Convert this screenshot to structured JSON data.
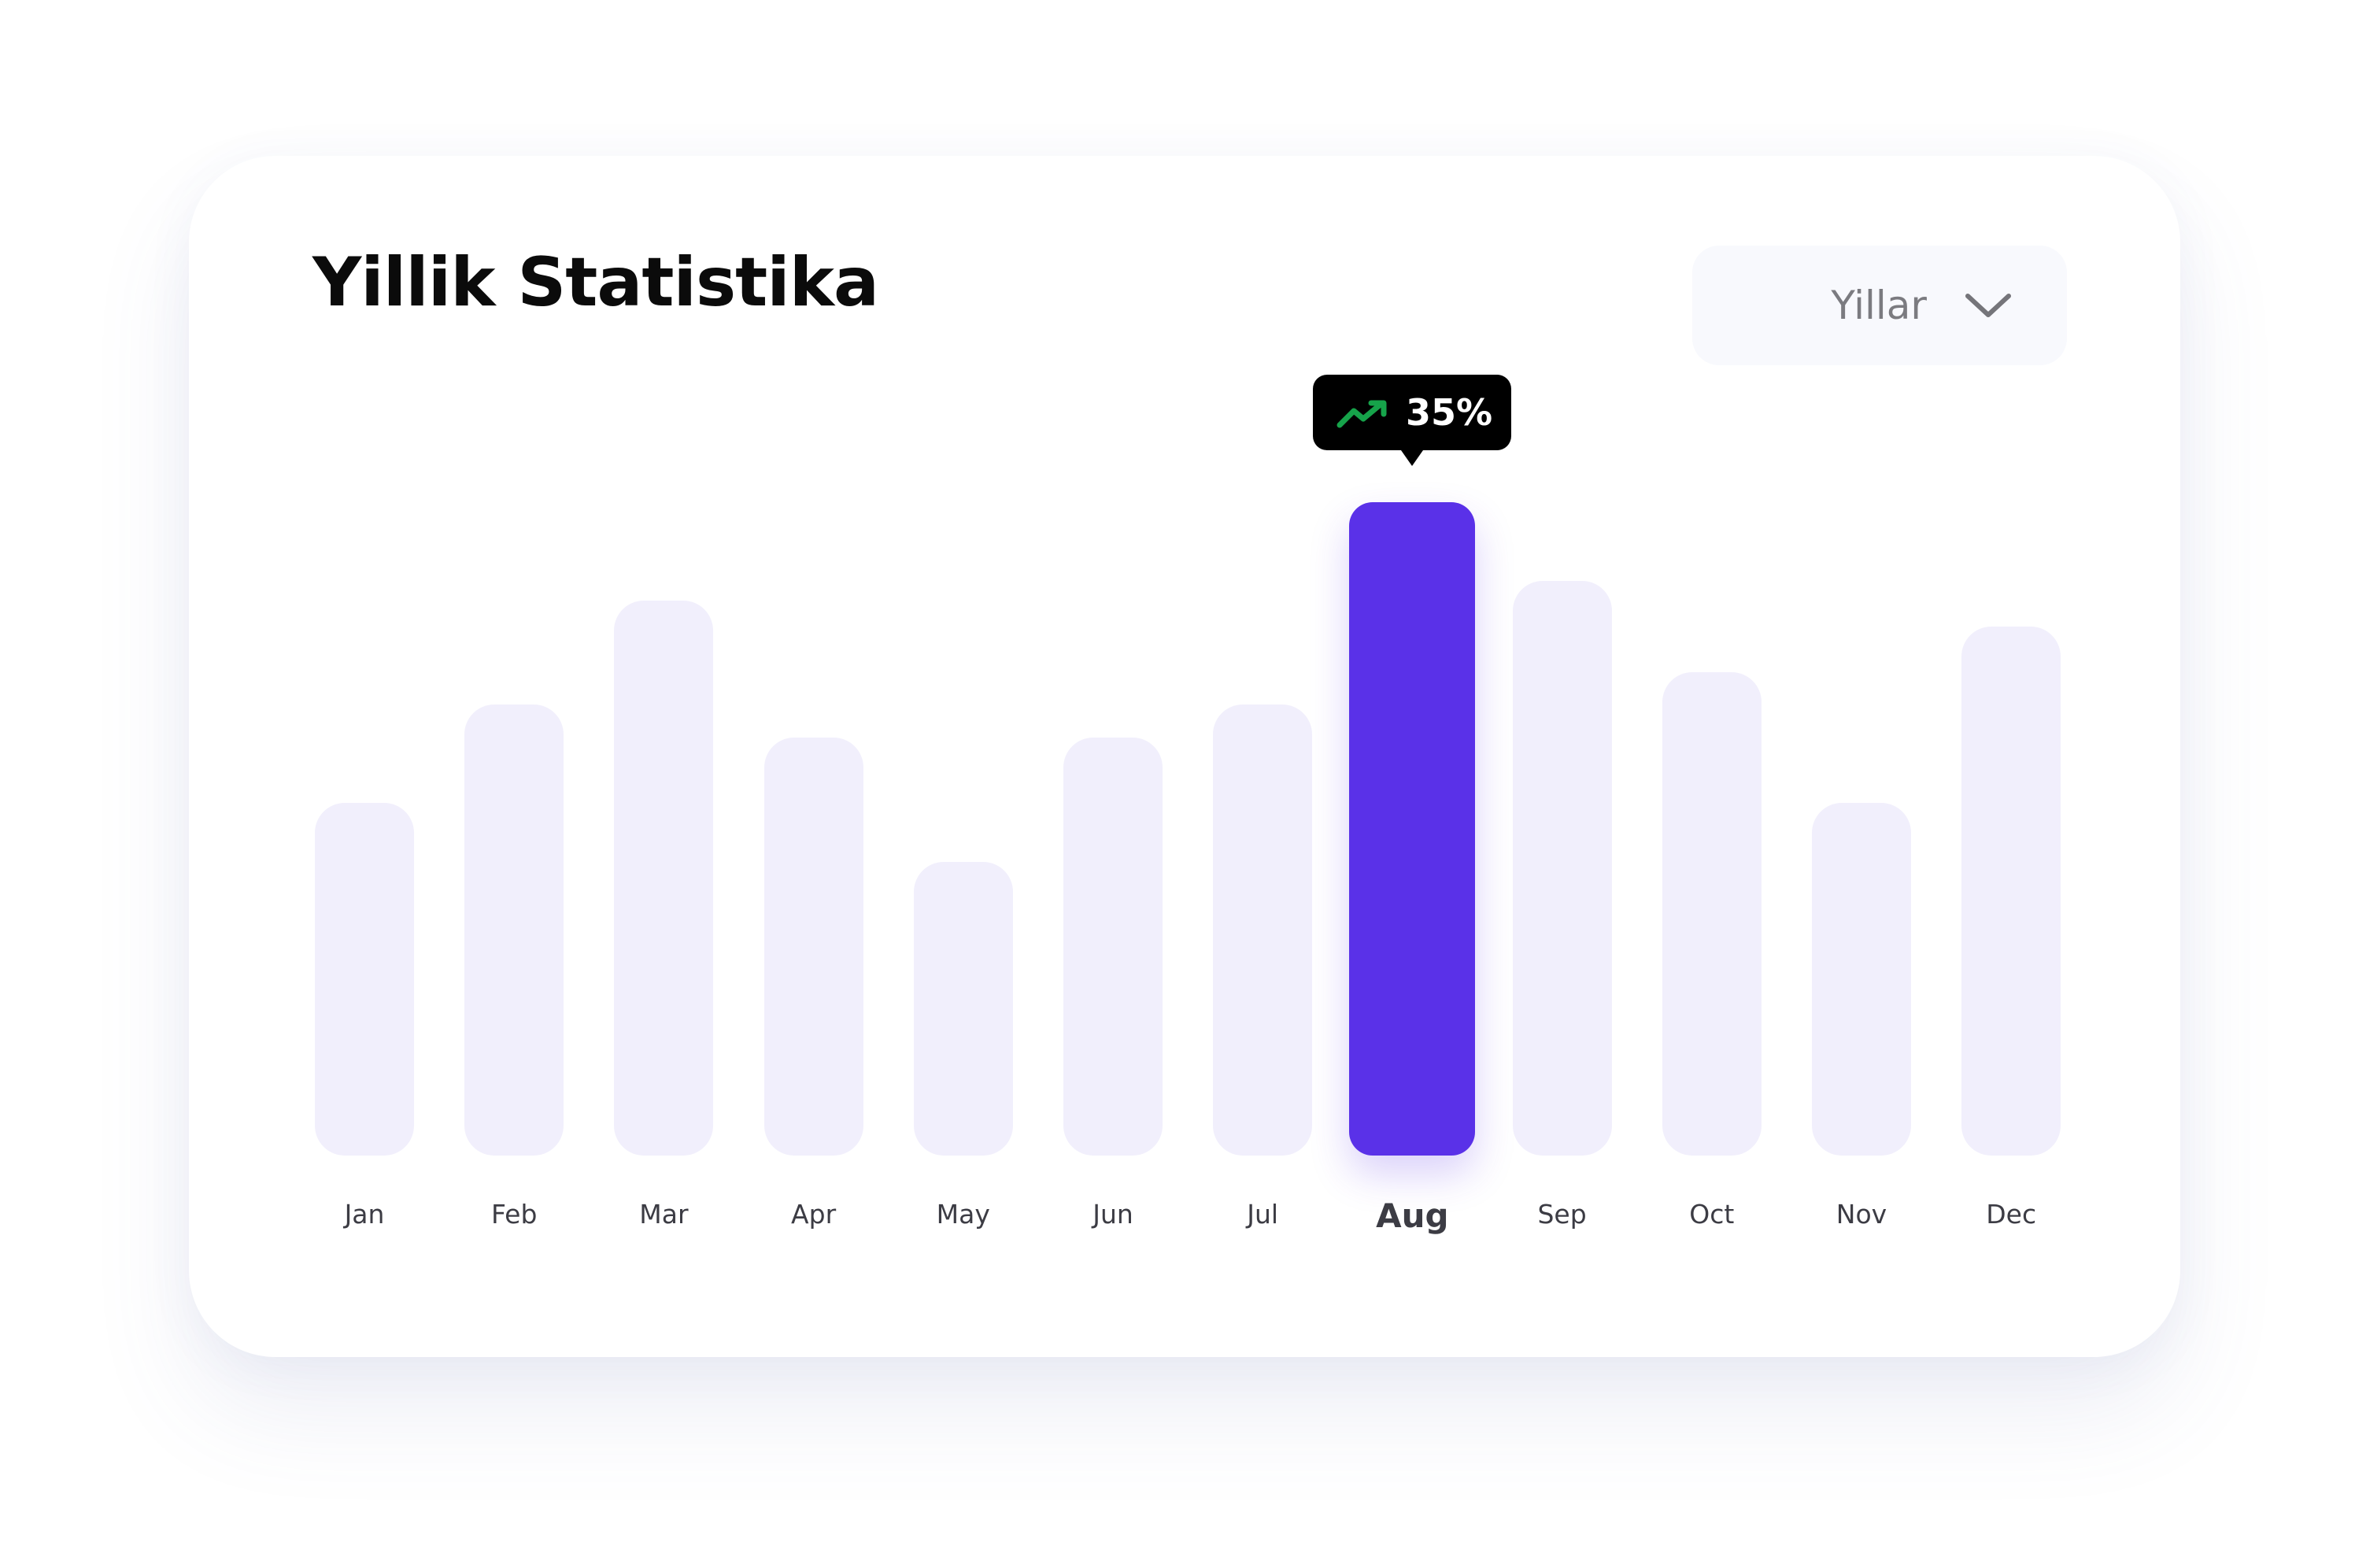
{
  "card": {
    "title": "Yillik Statistika"
  },
  "dropdown": {
    "label": "Yillar",
    "icon": "chevron-down-icon"
  },
  "tooltip": {
    "icon": "trending-up-icon",
    "icon_color": "#16a34a",
    "value": "35%"
  },
  "colors": {
    "bar_default": "#f1effc",
    "bar_active": "#5a31e8"
  },
  "chart_data": {
    "type": "bar",
    "categories": [
      "Jan",
      "Feb",
      "Mar",
      "Apr",
      "May",
      "Jun",
      "Jul",
      "Aug",
      "Sep",
      "Oct",
      "Nov",
      "Dec"
    ],
    "values": [
      54,
      69,
      85,
      64,
      45,
      64,
      69,
      100,
      88,
      74,
      54,
      81
    ],
    "highlighted": "Aug",
    "highlight_label": "35%",
    "ylim": [
      0,
      100
    ],
    "grid": false,
    "legend": "none"
  }
}
